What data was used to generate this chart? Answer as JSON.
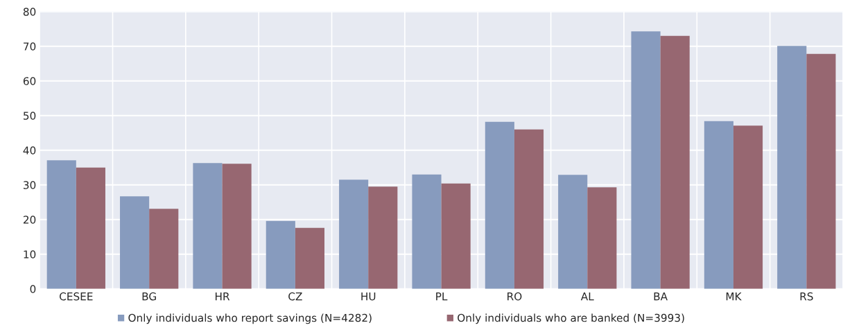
{
  "chart_data": {
    "type": "bar",
    "categories": [
      "CESEE",
      "BG",
      "HR",
      "CZ",
      "HU",
      "PL",
      "RO",
      "AL",
      "BA",
      "MK",
      "RS"
    ],
    "series": [
      {
        "name": "Only individuals who report savings (N=4282)",
        "color": "#879bbe",
        "values": [
          37.1,
          26.7,
          36.3,
          19.6,
          31.5,
          33.0,
          48.2,
          32.9,
          74.3,
          48.4,
          70.1
        ]
      },
      {
        "name": "Only individuals who are banked (N=3993)",
        "color": "#976771",
        "values": [
          35.0,
          23.1,
          36.1,
          17.6,
          29.5,
          30.4,
          46.0,
          29.3,
          73.0,
          47.1,
          67.8
        ]
      }
    ],
    "ylim": [
      0,
      80
    ],
    "yticks": [
      0,
      10,
      20,
      30,
      40,
      50,
      60,
      70,
      80
    ],
    "grid": true,
    "legend": "bottom"
  }
}
